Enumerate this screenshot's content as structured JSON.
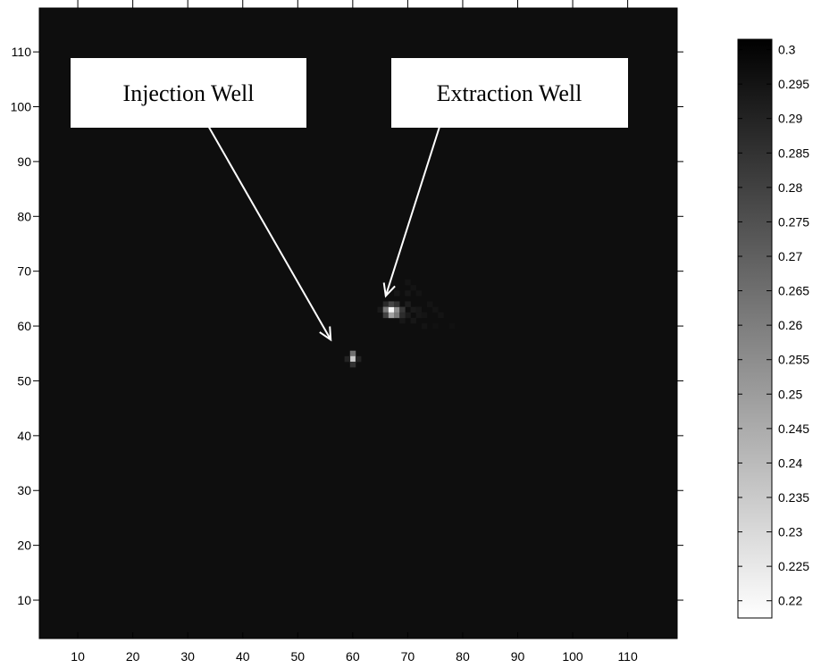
{
  "chart_data": {
    "type": "heatmap",
    "title": "",
    "xlabel": "",
    "ylabel": "",
    "xlim": [
      3,
      119
    ],
    "ylim": [
      3,
      118
    ],
    "x_ticks": [
      10,
      20,
      30,
      40,
      50,
      60,
      70,
      80,
      90,
      100,
      110
    ],
    "y_ticks": [
      10,
      20,
      30,
      40,
      50,
      60,
      70,
      80,
      90,
      100,
      110
    ],
    "background_value": 0.297,
    "colormap": "gray (white = low, black = high)",
    "colorbar": {
      "range": [
        0.2175,
        0.3015
      ],
      "ticks": [
        "0.3",
        "0.295",
        "0.29",
        "0.285",
        "0.28",
        "0.275",
        "0.27",
        "0.265",
        "0.26",
        "0.255",
        "0.25",
        "0.245",
        "0.24",
        "0.235",
        "0.23",
        "0.225",
        "0.22"
      ]
    },
    "cells": [
      {
        "x": 60,
        "y": 55,
        "value": 0.265
      },
      {
        "x": 60,
        "y": 54,
        "value": 0.235
      },
      {
        "x": 60,
        "y": 53,
        "value": 0.285
      },
      {
        "x": 59,
        "y": 54,
        "value": 0.29
      },
      {
        "x": 61,
        "y": 54,
        "value": 0.29
      },
      {
        "x": 66,
        "y": 64,
        "value": 0.288
      },
      {
        "x": 66,
        "y": 63,
        "value": 0.262
      },
      {
        "x": 67,
        "y": 63,
        "value": 0.22
      },
      {
        "x": 68,
        "y": 63,
        "value": 0.255
      },
      {
        "x": 69,
        "y": 63,
        "value": 0.283
      },
      {
        "x": 66,
        "y": 62,
        "value": 0.28
      },
      {
        "x": 67,
        "y": 62,
        "value": 0.248
      },
      {
        "x": 68,
        "y": 62,
        "value": 0.262
      },
      {
        "x": 69,
        "y": 62,
        "value": 0.287
      },
      {
        "x": 67,
        "y": 64,
        "value": 0.278
      },
      {
        "x": 68,
        "y": 64,
        "value": 0.285
      }
    ],
    "halo": [
      {
        "x": 70,
        "y": 64,
        "value": 0.292
      },
      {
        "x": 71,
        "y": 63,
        "value": 0.293
      },
      {
        "x": 72,
        "y": 63,
        "value": 0.294
      },
      {
        "x": 70,
        "y": 62,
        "value": 0.293
      },
      {
        "x": 71,
        "y": 61,
        "value": 0.294
      },
      {
        "x": 72,
        "y": 62,
        "value": 0.294
      },
      {
        "x": 73,
        "y": 62,
        "value": 0.295
      },
      {
        "x": 70,
        "y": 66,
        "value": 0.294
      },
      {
        "x": 71,
        "y": 67,
        "value": 0.295
      },
      {
        "x": 72,
        "y": 66,
        "value": 0.295
      },
      {
        "x": 74,
        "y": 64,
        "value": 0.295
      },
      {
        "x": 75,
        "y": 63,
        "value": 0.295
      },
      {
        "x": 76,
        "y": 62,
        "value": 0.295
      },
      {
        "x": 73,
        "y": 60,
        "value": 0.295
      },
      {
        "x": 75,
        "y": 60,
        "value": 0.296
      },
      {
        "x": 78,
        "y": 60,
        "value": 0.296
      },
      {
        "x": 69,
        "y": 61,
        "value": 0.294
      },
      {
        "x": 65,
        "y": 63,
        "value": 0.293
      },
      {
        "x": 68,
        "y": 66,
        "value": 0.294
      },
      {
        "x": 70,
        "y": 68,
        "value": 0.295
      }
    ],
    "annotations": [
      {
        "id": "injection",
        "text": "Injection Well",
        "arrow_from": [
          28,
          106.5
        ],
        "arrow_to": [
          56,
          57.5
        ]
      },
      {
        "id": "extraction",
        "text": "Extraction Well",
        "arrow_from": [
          79,
          106.5
        ],
        "arrow_to": [
          66,
          65.5
        ]
      }
    ]
  }
}
